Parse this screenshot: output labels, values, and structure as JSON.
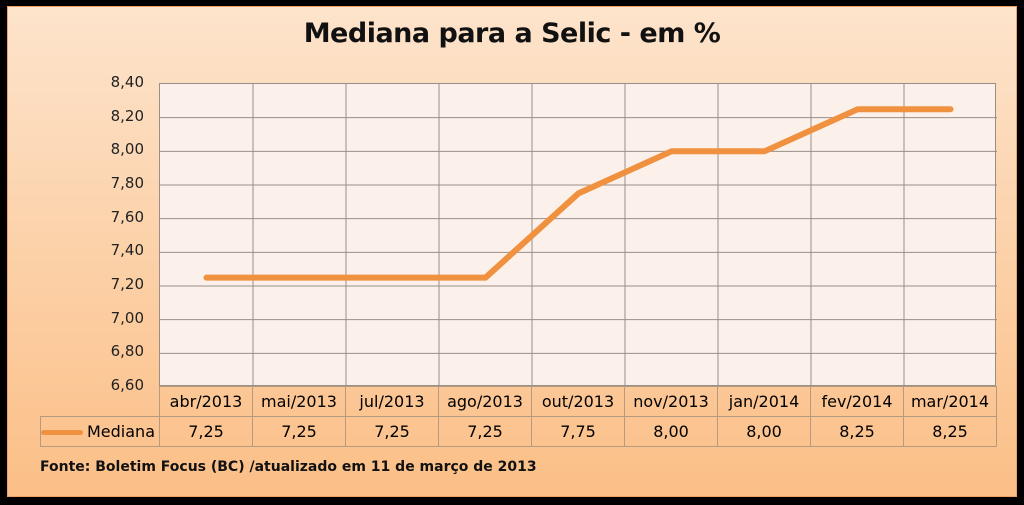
{
  "title": "Mediana para a Selic - em %",
  "source_note": "Fonte: Boletim Focus (BC) /atualizado em 11 de março de 2013",
  "legend": {
    "series_label": "Mediana",
    "color": "#f0913f"
  },
  "y_ticks": [
    "8,40",
    "8,20",
    "8,00",
    "7,80",
    "7,60",
    "7,40",
    "7,20",
    "7,00",
    "6,80",
    "6,60"
  ],
  "table": {
    "categories": [
      "abr/2013",
      "mai/2013",
      "jul/2013",
      "ago/2013",
      "out/2013",
      "nov/2013",
      "jan/2014",
      "fev/2014",
      "mar/2014"
    ],
    "values": [
      "7,25",
      "7,25",
      "7,25",
      "7,25",
      "7,75",
      "8,00",
      "8,00",
      "8,25",
      "8,25"
    ]
  },
  "colors": {
    "line": "#f0913f",
    "plot_bg": "#fcf0ea",
    "panel_top": "#fde4cc",
    "panel_bottom": "#fbbf87",
    "frame": "#000000"
  },
  "chart_data": {
    "type": "line",
    "title": "Mediana para a Selic - em %",
    "xlabel": "",
    "ylabel": "",
    "categories": [
      "abr/2013",
      "mai/2013",
      "jul/2013",
      "ago/2013",
      "out/2013",
      "nov/2013",
      "jan/2014",
      "fev/2014",
      "mar/2014"
    ],
    "series": [
      {
        "name": "Mediana",
        "values": [
          7.25,
          7.25,
          7.25,
          7.25,
          7.75,
          8.0,
          8.0,
          8.25,
          8.25
        ]
      }
    ],
    "ylim": [
      6.6,
      8.4
    ],
    "y_tick_step": 0.2,
    "grid": true,
    "legend_position": "data-table",
    "data_table": true,
    "annotation": "Fonte: Boletim Focus (BC) /atualizado em 11 de março de 2013"
  }
}
